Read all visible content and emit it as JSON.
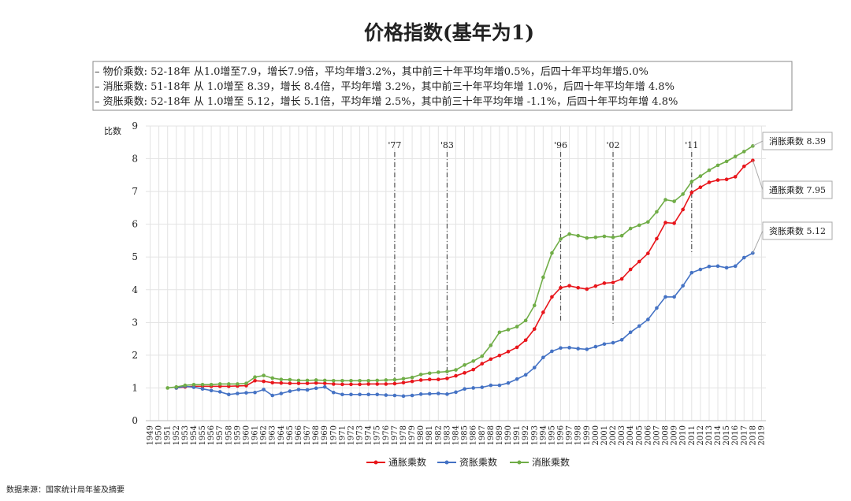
{
  "chart_data": {
    "type": "line",
    "title": "价格指数(基年为1)",
    "notes": [
      "– 物价乘数: 52-18年 从1.0增至7.9，增长7.9倍，平均年增3.2%，其中前三十年平均年增0.5%，后四十年平均年增5.0%",
      "– 消胀乘数: 51-18年 从 1.0增至 8.39，增长 8.4倍，平均年增 3.2%，其中前三十年平均年增 1.0%，后四十年平均年增 4.8%",
      "– 资胀乘数: 52-18年 从 1.0增至 5.12，增长 5.1倍，平均年增 2.5%，其中前三十年平均年增 -1.1%，后四十年平均年增 4.8%"
    ],
    "y_label": "比数",
    "source": "数据来源：国家统计局年鉴及摘要",
    "categories": [
      "1949",
      "1950",
      "1951",
      "1952",
      "1953",
      "1954",
      "1955",
      "1956",
      "1957",
      "1958",
      "1959",
      "1960",
      "1961",
      "1962",
      "1963",
      "1964",
      "1965",
      "1966",
      "1967",
      "1968",
      "1969",
      "1970",
      "1971",
      "1972",
      "1973",
      "1974",
      "1975",
      "1976",
      "1977",
      "1978",
      "1979",
      "1980",
      "1981",
      "1982",
      "1983",
      "1984",
      "1985",
      "1986",
      "1987",
      "1988",
      "1989",
      "1990",
      "1991",
      "1992",
      "1993",
      "1994",
      "1995",
      "1996",
      "1997",
      "1998",
      "1999",
      "2000",
      "2001",
      "2002",
      "2003",
      "2004",
      "2005",
      "2006",
      "2007",
      "2008",
      "2009",
      "2010",
      "2011",
      "2012",
      "2013",
      "2014",
      "2015",
      "2016",
      "2017",
      "2018",
      "2019"
    ],
    "series": [
      {
        "name": "通胀乘数",
        "color": "#e8151b",
        "values": [
          null,
          null,
          null,
          1.0,
          1.03,
          1.05,
          1.05,
          1.05,
          1.05,
          1.05,
          1.06,
          1.07,
          1.22,
          1.2,
          1.16,
          1.15,
          1.14,
          1.14,
          1.14,
          1.15,
          1.14,
          1.12,
          1.11,
          1.11,
          1.11,
          1.12,
          1.12,
          1.12,
          1.13,
          1.16,
          1.2,
          1.24,
          1.26,
          1.26,
          1.29,
          1.37,
          1.46,
          1.56,
          1.74,
          1.88,
          1.99,
          2.11,
          2.24,
          2.46,
          2.8,
          3.31,
          3.78,
          4.06,
          4.12,
          4.06,
          4.02,
          4.11,
          4.2,
          4.22,
          4.33,
          4.62,
          4.86,
          5.11,
          5.56,
          6.05,
          6.03,
          6.45,
          6.97,
          7.13,
          7.28,
          7.35,
          7.37,
          7.45,
          7.77,
          7.95,
          null
        ]
      },
      {
        "name": "资胀乘数",
        "color": "#4472c4",
        "values": [
          null,
          null,
          null,
          1.0,
          1.05,
          1.02,
          0.97,
          0.92,
          0.88,
          0.8,
          0.83,
          0.85,
          0.86,
          0.95,
          0.77,
          0.83,
          0.9,
          0.95,
          0.94,
          0.99,
          1.03,
          0.86,
          0.8,
          0.8,
          0.8,
          0.8,
          0.8,
          0.78,
          0.77,
          0.75,
          0.77,
          0.81,
          0.82,
          0.83,
          0.81,
          0.87,
          0.97,
          1.0,
          1.02,
          1.08,
          1.08,
          1.15,
          1.27,
          1.4,
          1.62,
          1.93,
          2.12,
          2.22,
          2.23,
          2.2,
          2.18,
          2.26,
          2.34,
          2.38,
          2.47,
          2.7,
          2.89,
          3.09,
          3.44,
          3.78,
          3.78,
          4.12,
          4.52,
          4.62,
          4.71,
          4.72,
          4.67,
          4.72,
          4.98,
          5.12,
          null
        ]
      },
      {
        "name": "消胀乘数",
        "color": "#70ad47",
        "values": [
          null,
          null,
          1.0,
          1.03,
          1.08,
          1.1,
          1.1,
          1.1,
          1.12,
          1.12,
          1.12,
          1.14,
          1.33,
          1.38,
          1.3,
          1.26,
          1.25,
          1.23,
          1.23,
          1.24,
          1.23,
          1.22,
          1.22,
          1.22,
          1.22,
          1.22,
          1.23,
          1.24,
          1.25,
          1.28,
          1.32,
          1.41,
          1.45,
          1.48,
          1.5,
          1.55,
          1.7,
          1.82,
          1.97,
          2.3,
          2.7,
          2.78,
          2.87,
          3.06,
          3.52,
          4.38,
          5.12,
          5.55,
          5.7,
          5.65,
          5.58,
          5.6,
          5.63,
          5.6,
          5.65,
          5.87,
          5.97,
          6.07,
          6.38,
          6.75,
          6.7,
          6.92,
          7.3,
          7.47,
          7.65,
          7.8,
          7.92,
          8.07,
          8.22,
          8.39,
          null
        ]
      }
    ],
    "callouts": [
      "通胀乘数 7.95",
      "资胀乘数 5.12",
      "消胀乘数 8.39"
    ],
    "markers": [
      {
        "label": "'77",
        "x": 1977
      },
      {
        "label": "'83",
        "x": 1983
      },
      {
        "label": "'96",
        "x": 1996
      },
      {
        "label": "'02",
        "x": 2002
      },
      {
        "label": "'11",
        "x": 2011
      }
    ],
    "ylim": [
      0,
      9
    ],
    "yticks": [
      0,
      1,
      2,
      3,
      4,
      5,
      6,
      7,
      8,
      9
    ],
    "grid": true
  }
}
